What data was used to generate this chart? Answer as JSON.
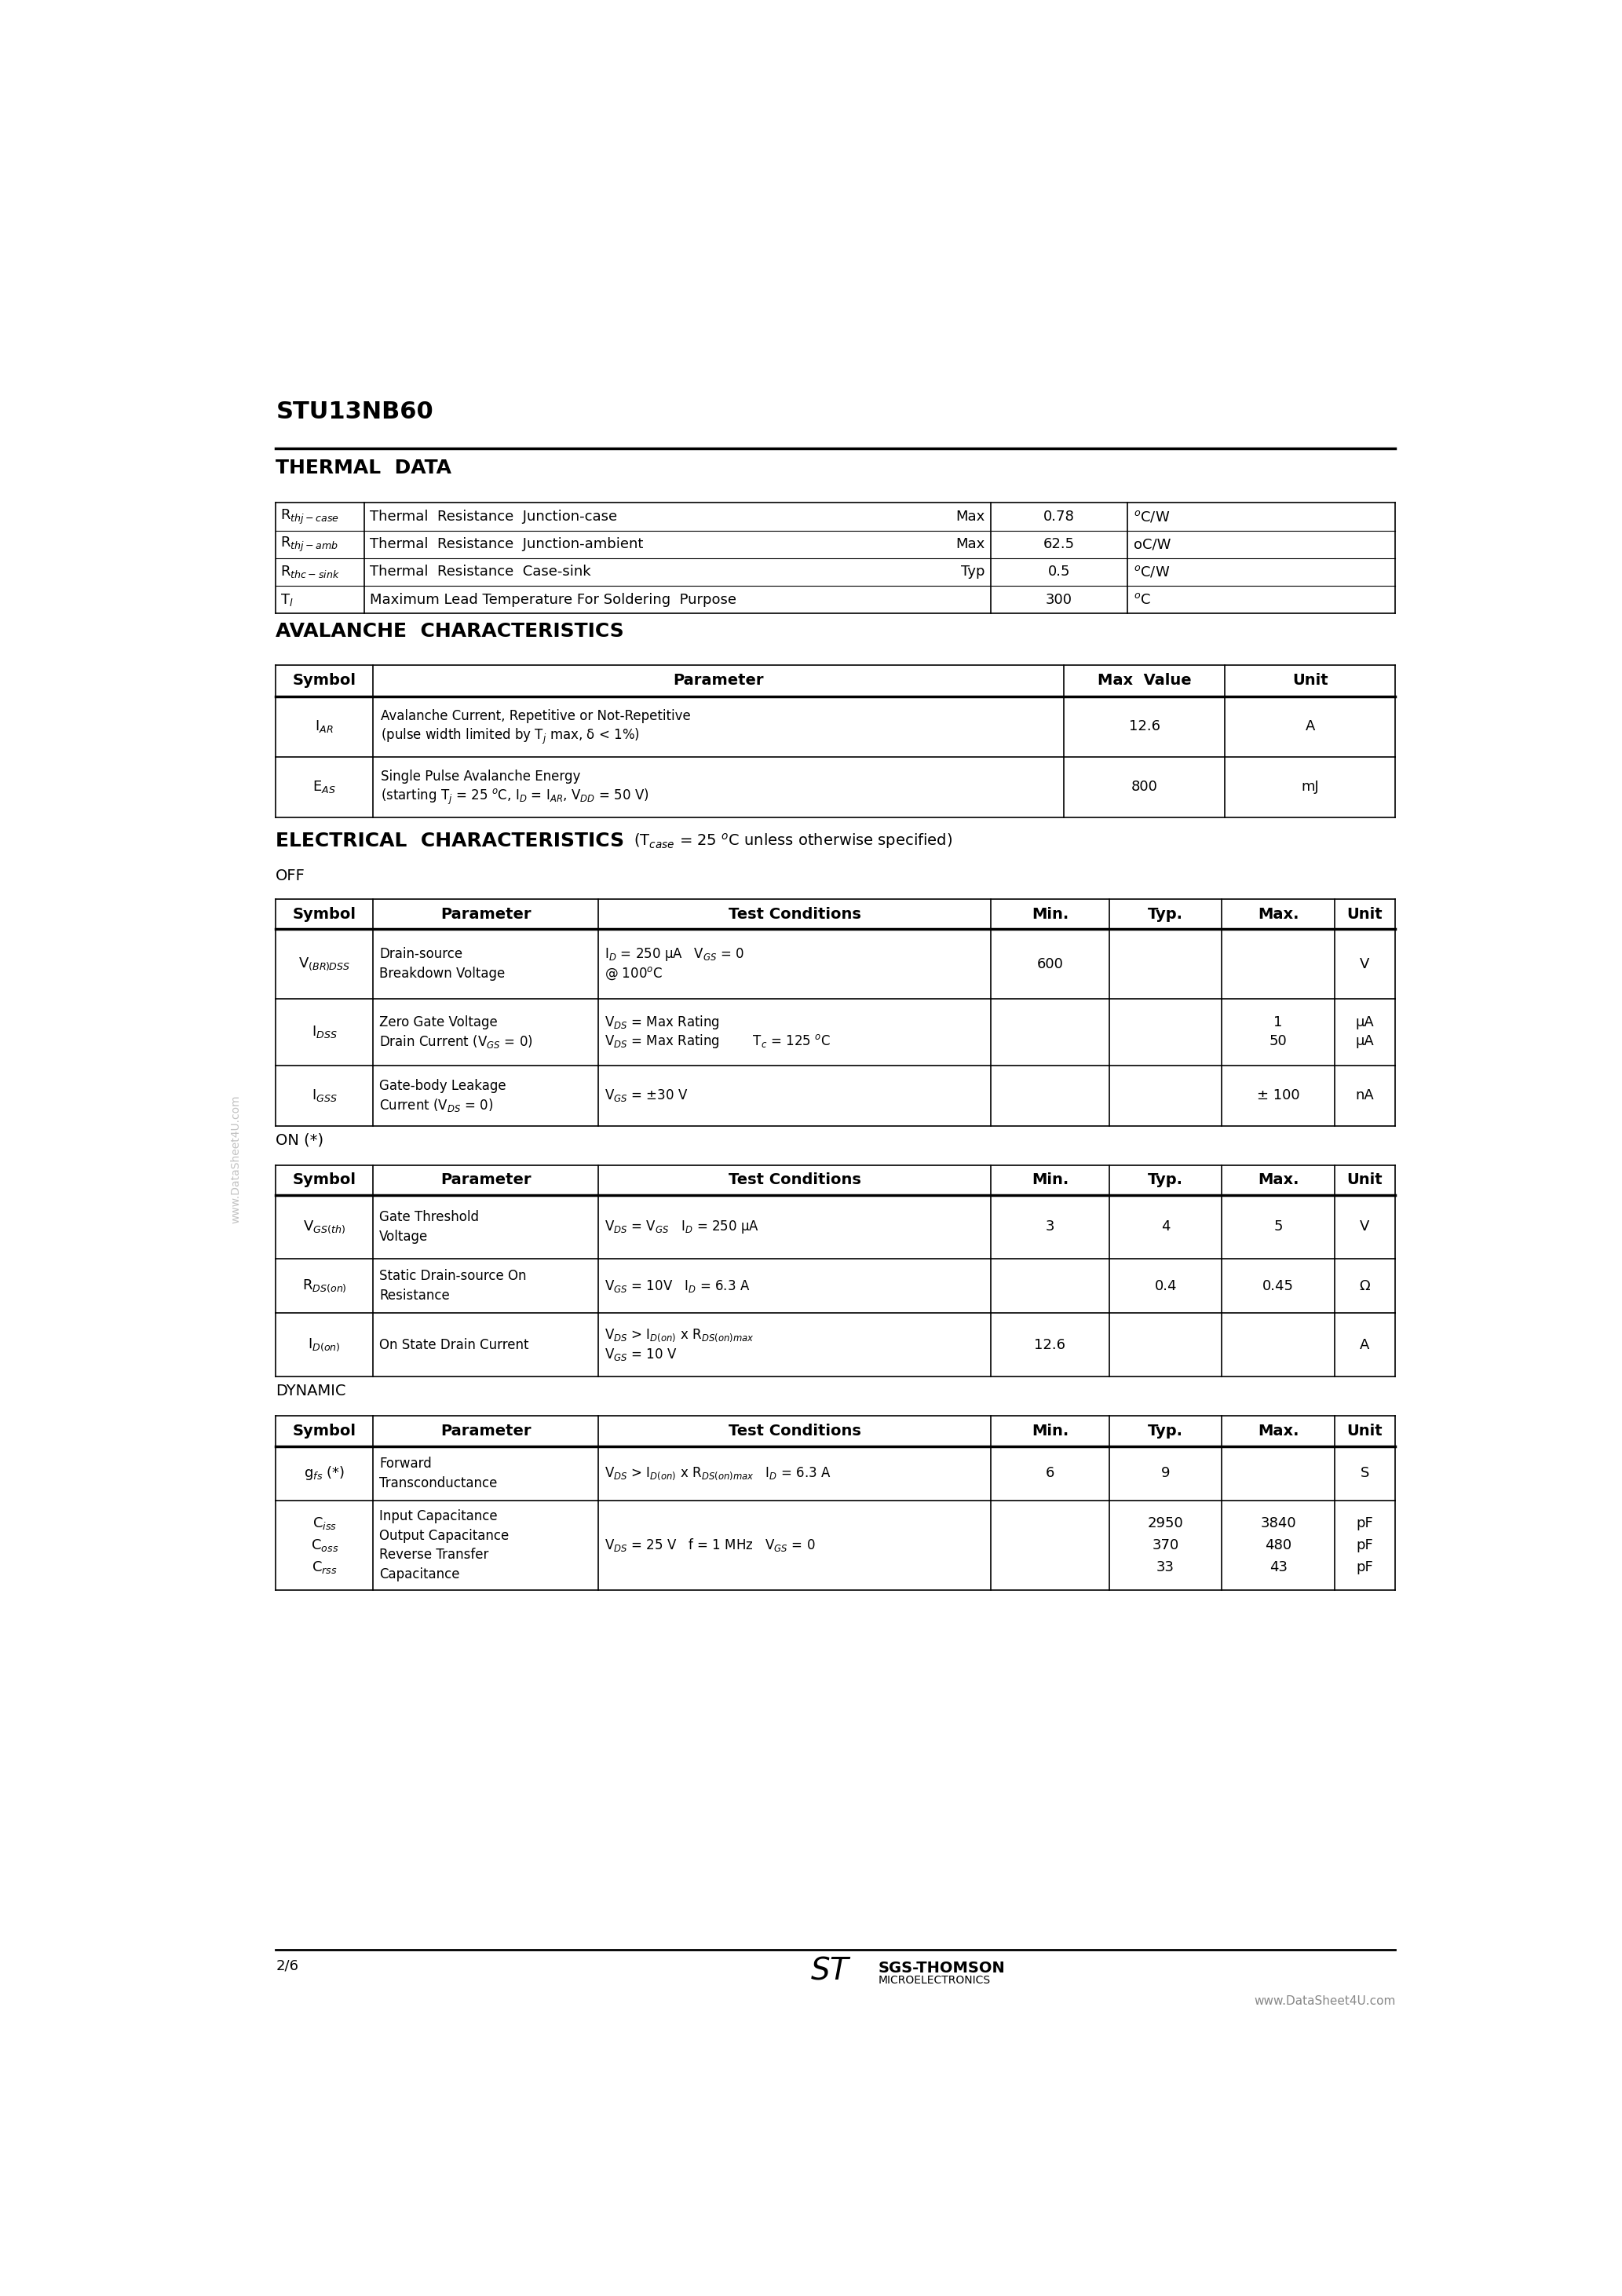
{
  "title": "STU13NB60",
  "bg_color": "#ffffff",
  "text_color": "#000000",
  "page_num": "2/6",
  "footer_url": "www.DataSheet4U.com",
  "sections": {
    "thermal": {
      "heading": "THERMAL  DATA",
      "rows": [
        {
          "sym": "R$_{thj-case}$",
          "desc": "Thermal  Resistance  Junction-case",
          "cond": "Max",
          "value": "0.78",
          "unit": "$^o$C/W"
        },
        {
          "sym": "R$_{thj-amb}$",
          "desc": "Thermal  Resistance  Junction-ambient",
          "cond": "Max",
          "value": "62.5",
          "unit": "oC/W"
        },
        {
          "sym": "R$_{thc-sink}$",
          "desc": "Thermal  Resistance  Case-sink",
          "cond": "Typ",
          "value": "0.5",
          "unit": "$^o$C/W"
        },
        {
          "sym": "T$_l$",
          "desc": "Maximum Lead Temperature For Soldering  Purpose",
          "cond": "",
          "value": "300",
          "unit": "$^o$C"
        }
      ]
    },
    "avalanche": {
      "heading": "AVALANCHE  CHARACTERISTICS",
      "headers": [
        "Symbol",
        "Parameter",
        "Max  Value",
        "Unit"
      ],
      "rows": [
        {
          "sym": "I$_{AR}$",
          "param": "Avalanche Current, Repetitive or Not-Repetitive\n(pulse width limited by T$_j$ max, δ < 1%)",
          "max_val": "12.6",
          "unit": "A"
        },
        {
          "sym": "E$_{AS}$",
          "param": "Single Pulse Avalanche Energy\n(starting T$_j$ = 25 $^o$C, I$_D$ = I$_{AR}$, V$_{DD}$ = 50 V)",
          "max_val": "800",
          "unit": "mJ"
        }
      ]
    },
    "electrical": {
      "heading": "ELECTRICAL  CHARACTERISTICS",
      "heading_suffix": " (T$_{case}$ = 25 $^o$C unless otherwise specified)",
      "sub_off": "OFF",
      "headers_5col": [
        "Symbol",
        "Parameter",
        "Test Conditions",
        "Min.",
        "Typ.",
        "Max.",
        "Unit"
      ],
      "rows_off": [
        {
          "sym": "V$_{(BR)DSS}$",
          "param": "Drain-source\nBreakdown Voltage",
          "cond": "I$_D$ = 250 μA   V$_{GS}$ = 0\n@ 100$^o$C",
          "min": "600",
          "typ": "",
          "max": "",
          "unit": "V"
        },
        {
          "sym": "I$_{DSS}$",
          "param": "Zero Gate Voltage\nDrain Current (V$_{GS}$ = 0)",
          "cond": "V$_{DS}$ = Max Rating\nV$_{DS}$ = Max Rating        T$_c$ = 125 $^o$C",
          "min": "",
          "typ": "",
          "max": "1\n50",
          "unit": "μA\nμA"
        },
        {
          "sym": "I$_{GSS}$",
          "param": "Gate-body Leakage\nCurrent (V$_{DS}$ = 0)",
          "cond": "V$_{GS}$ = ±30 V",
          "min": "",
          "typ": "",
          "max": "± 100",
          "unit": "nA"
        }
      ],
      "sub_on": "ON (*)",
      "rows_on": [
        {
          "sym": "V$_{GS(th)}$",
          "param": "Gate Threshold\nVoltage",
          "cond": "V$_{DS}$ = V$_{GS}$   I$_D$ = 250 μA",
          "min": "3",
          "typ": "4",
          "max": "5",
          "unit": "V"
        },
        {
          "sym": "R$_{DS(on)}$",
          "param": "Static Drain-source On\nResistance",
          "cond": "V$_{GS}$ = 10V   I$_D$ = 6.3 A",
          "min": "",
          "typ": "0.4",
          "max": "0.45",
          "unit": "Ω"
        },
        {
          "sym": "I$_{D(on)}$",
          "param": "On State Drain Current",
          "cond": "V$_{DS}$ > I$_{D(on)}$ x R$_{DS(on)max}$\nV$_{GS}$ = 10 V",
          "min": "12.6",
          "typ": "",
          "max": "",
          "unit": "A"
        }
      ],
      "sub_dynamic": "DYNAMIC",
      "rows_dyn": [
        {
          "sym": "g$_{fs}$ (*)",
          "param": "Forward\nTransconductance",
          "cond": "V$_{DS}$ > I$_{D(on)}$ x R$_{DS(on)max}$   I$_D$ = 6.3 A",
          "min": "6",
          "typ": "9",
          "max": "",
          "unit": "S"
        },
        {
          "sym": "C$_{iss}$\nC$_{oss}$\nC$_{rss}$",
          "param": "Input Capacitance\nOutput Capacitance\nReverse Transfer\nCapacitance",
          "cond": "V$_{DS}$ = 25 V   f = 1 MHz   V$_{GS}$ = 0",
          "min": "",
          "typ": "2950\n370\n33",
          "max": "3840\n480\n43",
          "unit": "pF\npF\npF"
        }
      ]
    }
  }
}
